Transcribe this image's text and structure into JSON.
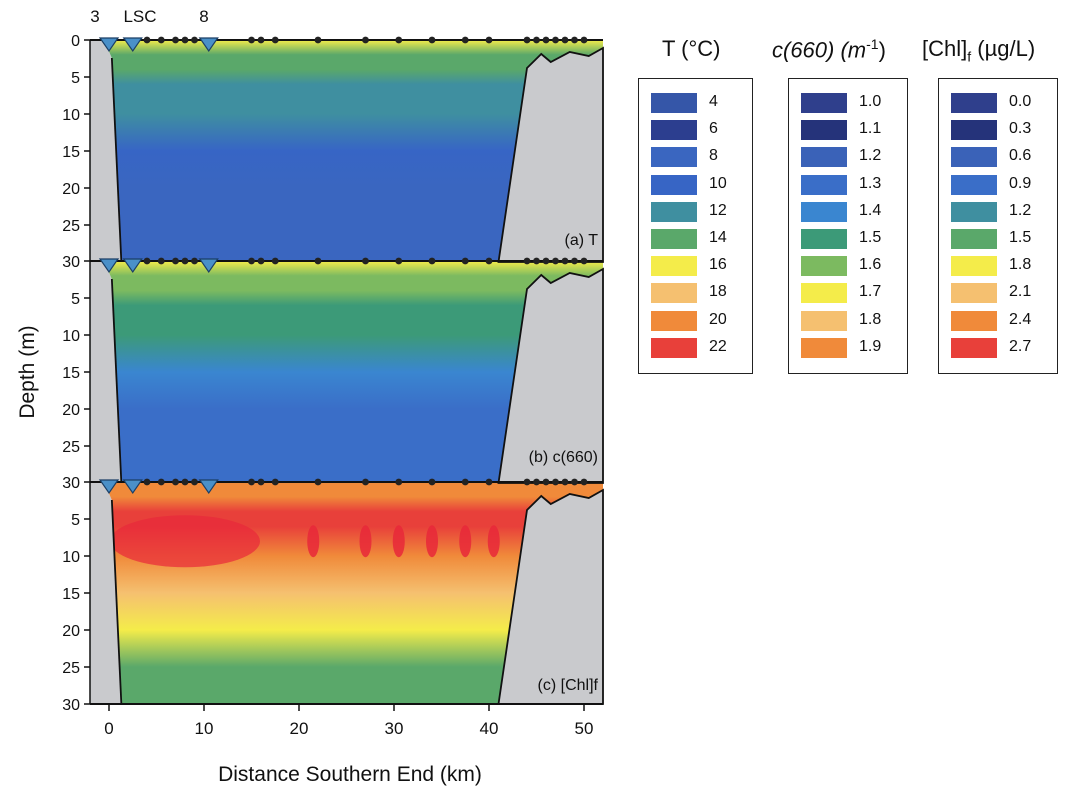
{
  "chart_data": {
    "type": "heatmap",
    "xlabel": "Distance Southern End (km)",
    "ylabel": "Depth (m)",
    "xlim": [
      -2,
      52
    ],
    "ylim": [
      30,
      0
    ],
    "x_ticks": [
      "0",
      "10",
      "20",
      "30",
      "40",
      "50"
    ],
    "y_ticks": [
      "0",
      "5",
      "10",
      "15",
      "20",
      "25",
      "30"
    ],
    "y_ticks_lower": [
      "30",
      "5",
      "10",
      "15",
      "20",
      "25"
    ],
    "station_labels": [
      {
        "label": "3",
        "x": 0
      },
      {
        "label": "LSC",
        "x": 2.5
      },
      {
        "label": "8",
        "x": 10.5
      }
    ],
    "station_triangles_km": [
      0,
      2.5,
      10.5
    ],
    "station_dots_km": [
      4,
      5.5,
      7,
      8,
      9,
      15,
      16,
      17.5,
      22,
      27,
      30.5,
      34,
      37.5,
      40,
      44,
      45,
      46,
      47,
      48,
      49,
      50
    ],
    "panels": [
      {
        "id": "a",
        "label": "(a) T",
        "variable": "T",
        "description": "Temperature section: warm near-surface layer, decreasing to cold deep water",
        "profile_depths_m": [
          0,
          2,
          4,
          6,
          10,
          15,
          20,
          25,
          30
        ],
        "profile_values": [
          16,
          15,
          14,
          13.5,
          12.5,
          11,
          9.5,
          8.5,
          8
        ]
      },
      {
        "id": "b",
        "label": "(b) c(660)",
        "variable": "c(660)",
        "description": "Beam attenuation section: elevated near surface at southern end, lower at depth",
        "profile_depths_m": [
          0,
          2,
          4,
          6,
          10,
          15,
          20,
          25,
          30
        ],
        "profile_values": [
          1.7,
          1.65,
          1.6,
          1.55,
          1.5,
          1.45,
          1.35,
          1.3,
          1.3
        ]
      },
      {
        "id": "c",
        "label": "(c) [Chl]f",
        "variable": "[Chl]f",
        "description": "Fluorescent chlorophyll section: high values in upper 12 m, decreasing with depth",
        "profile_depths_m": [
          0,
          2,
          4,
          6,
          10,
          15,
          20,
          25,
          30
        ],
        "profile_values": [
          2.4,
          2.6,
          2.7,
          2.7,
          2.6,
          2.2,
          1.9,
          1.7,
          1.5
        ]
      }
    ],
    "legends": [
      {
        "id": "T",
        "title_main": "T (°C)",
        "colors": [
          "#3556a8",
          "#2c3e8f",
          "#3a66c0",
          "#3765c5",
          "#3f8fa0",
          "#5aa86a",
          "#f4ec4a",
          "#f5c070",
          "#f08a3a",
          "#e8403a"
        ],
        "labels": [
          "4",
          "6",
          "8",
          "10",
          "12",
          "14",
          "16",
          "18",
          "20",
          "22"
        ]
      },
      {
        "id": "c660",
        "title_main": "c(660) (m",
        "title_sup": "-1",
        "title_end": ")",
        "colors": [
          "#2f3f8c",
          "#25337a",
          "#3a62b8",
          "#3a6ec8",
          "#3a86d0",
          "#3c9a78",
          "#7cba60",
          "#f4ec4a",
          "#f5c070",
          "#f08a3a"
        ],
        "labels": [
          "1.0",
          "1.1",
          "1.2",
          "1.3",
          "1.4",
          "1.5",
          "1.6",
          "1.7",
          "1.8",
          "1.9"
        ]
      },
      {
        "id": "chl",
        "title_main": "[Chl]",
        "title_sub": "f",
        "title_end": " (µg/L)",
        "colors": [
          "#2f3f8c",
          "#25337a",
          "#3a62b8",
          "#3a6ec8",
          "#3f8fa0",
          "#5aa86a",
          "#f4ec4a",
          "#f5c070",
          "#f08a3a",
          "#e8403a"
        ],
        "labels": [
          "0.0",
          "0.3",
          "0.6",
          "0.9",
          "1.2",
          "1.5",
          "1.8",
          "2.1",
          "2.4",
          "2.7"
        ]
      }
    ]
  }
}
